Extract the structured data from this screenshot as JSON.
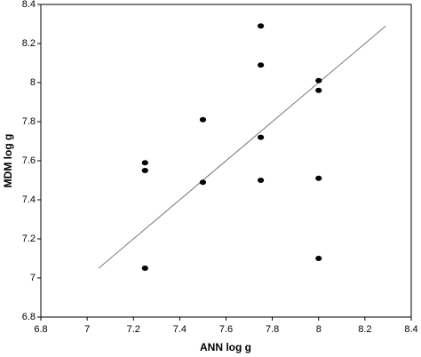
{
  "chart_data": {
    "type": "scatter",
    "x_label": "ANN log g",
    "y_label": "MDM log g",
    "x": [
      7.75,
      7.75,
      8.0,
      8.0,
      7.5,
      7.75,
      7.25,
      7.25,
      7.5,
      7.75,
      8.0,
      7.25,
      8.0
    ],
    "y": [
      8.29,
      8.09,
      8.01,
      7.96,
      7.81,
      7.72,
      7.59,
      7.55,
      7.49,
      7.5,
      7.51,
      7.05,
      7.1
    ],
    "color": "#000000",
    "reference_line": {
      "x": [
        7.05,
        8.29
      ],
      "y": [
        7.05,
        8.29
      ],
      "color": "#777777"
    },
    "xlim": [
      6.8,
      8.4
    ],
    "xticks": [
      6.8,
      7,
      7.2,
      7.4,
      7.6,
      7.8,
      8,
      8.2,
      8.4
    ],
    "ylim": [
      6.8,
      8.4
    ],
    "yticks": [
      6.8,
      7,
      7.2,
      7.4,
      7.6,
      7.8,
      8,
      8.2,
      8.4
    ],
    "grid": false
  }
}
